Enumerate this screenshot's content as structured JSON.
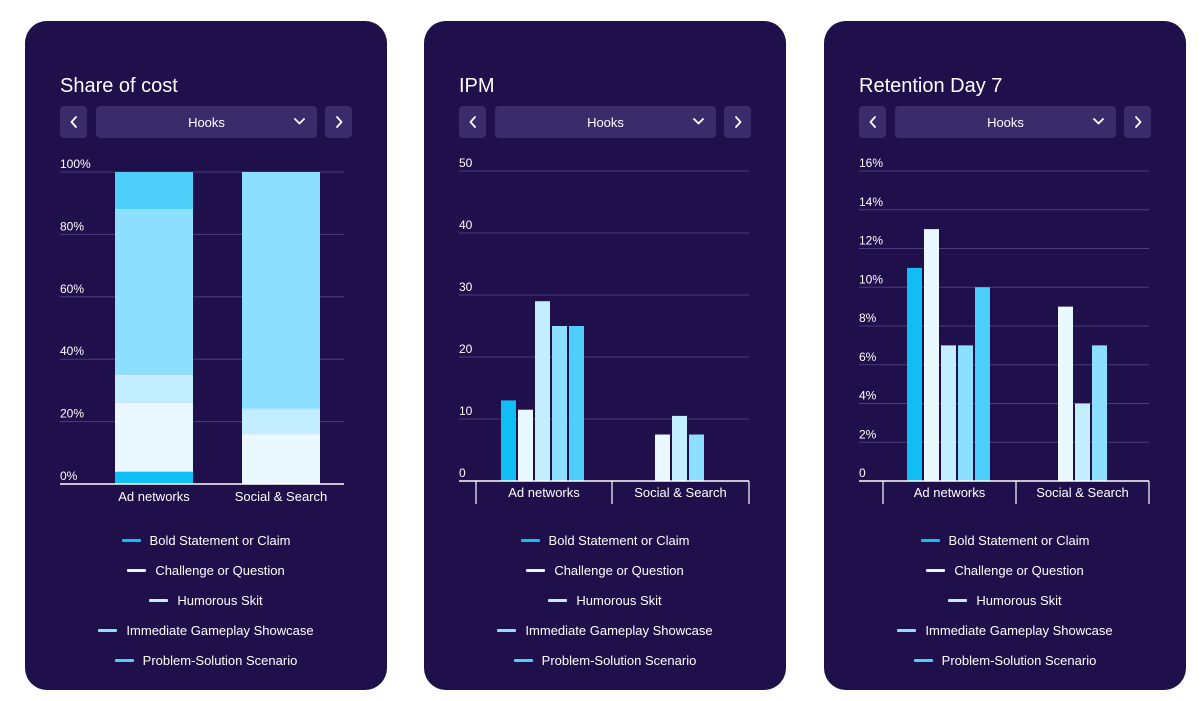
{
  "colors": {
    "card_bg": "#1f0f4b",
    "control_bg": "#3a2b6b",
    "grid": "#4a3d7e",
    "axis": "#ffffff",
    "text": "#ffffff"
  },
  "legend": [
    {
      "label": "Bold Statement or Claim",
      "color": "#0fbef5"
    },
    {
      "label": "Challenge or Question",
      "color": "#e9f9ff"
    },
    {
      "label": "Humorous Skit",
      "color": "#c3eeff"
    },
    {
      "label": "Immediate Gameplay Showcase",
      "color": "#8ddfff"
    },
    {
      "label": "Problem-Solution Scenario",
      "color": "#4dcff9"
    }
  ],
  "cards": [
    {
      "title": "Share of cost",
      "filter": "Hooks",
      "prev_icon": "chevron-left-icon",
      "next_icon": "chevron-right-icon",
      "dropdown_icon": "chevron-down-icon"
    },
    {
      "title": "IPM",
      "filter": "Hooks",
      "prev_icon": "chevron-left-icon",
      "next_icon": "chevron-right-icon",
      "dropdown_icon": "chevron-down-icon"
    },
    {
      "title": "Retention Day 7",
      "filter": "Hooks",
      "prev_icon": "chevron-left-icon",
      "next_icon": "chevron-right-icon",
      "dropdown_icon": "chevron-down-icon"
    }
  ],
  "chart_data": [
    {
      "type": "bar",
      "stacked": true,
      "title": "Share of cost",
      "categories": [
        "Ad networks",
        "Social & Search"
      ],
      "y_ticks": [
        "0%",
        "20%",
        "40%",
        "60%",
        "80%",
        "100%"
      ],
      "ylim": [
        0,
        100
      ],
      "grid": true,
      "series": [
        {
          "name": "Bold Statement or Claim",
          "values": [
            4,
            0
          ]
        },
        {
          "name": "Challenge or Question",
          "values": [
            22,
            16
          ]
        },
        {
          "name": "Humorous Skit",
          "values": [
            9,
            8
          ]
        },
        {
          "name": "Immediate Gameplay Showcase",
          "values": [
            53,
            76
          ]
        },
        {
          "name": "Problem-Solution Scenario",
          "values": [
            12,
            0
          ]
        }
      ]
    },
    {
      "type": "bar",
      "stacked": false,
      "title": "IPM",
      "categories": [
        "Ad networks",
        "Social & Search"
      ],
      "y_ticks": [
        "0",
        "10",
        "20",
        "30",
        "40",
        "50"
      ],
      "ylim": [
        0,
        50
      ],
      "grid": true,
      "series": [
        {
          "name": "Bold Statement or Claim",
          "values": [
            13,
            null
          ]
        },
        {
          "name": "Challenge or Question",
          "values": [
            11.5,
            7.5
          ]
        },
        {
          "name": "Humorous Skit",
          "values": [
            29,
            10.5
          ]
        },
        {
          "name": "Immediate Gameplay Showcase",
          "values": [
            25,
            7.5
          ]
        },
        {
          "name": "Problem-Solution Scenario",
          "values": [
            25,
            null
          ]
        }
      ]
    },
    {
      "type": "bar",
      "stacked": false,
      "title": "Retention Day 7",
      "categories": [
        "Ad networks",
        "Social & Search"
      ],
      "y_ticks": [
        "0",
        "2%",
        "4%",
        "6%",
        "8%",
        "10%",
        "12%",
        "14%",
        "16%"
      ],
      "ylim": [
        0,
        16
      ],
      "grid": true,
      "series": [
        {
          "name": "Bold Statement or Claim",
          "values": [
            11,
            null
          ]
        },
        {
          "name": "Challenge or Question",
          "values": [
            13,
            9
          ]
        },
        {
          "name": "Humorous Skit",
          "values": [
            7,
            4
          ]
        },
        {
          "name": "Immediate Gameplay Showcase",
          "values": [
            7,
            7
          ]
        },
        {
          "name": "Problem-Solution Scenario",
          "values": [
            10,
            null
          ]
        }
      ]
    }
  ]
}
